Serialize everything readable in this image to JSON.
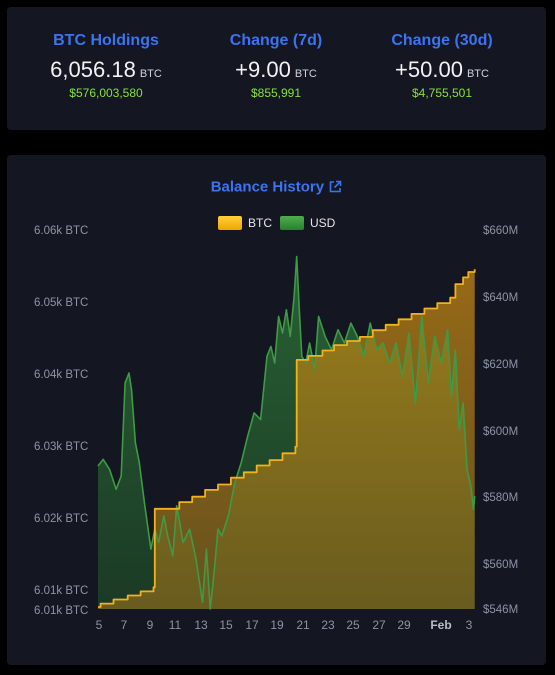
{
  "stats": [
    {
      "title": "BTC Holdings",
      "value": "6,056.18",
      "unit": "BTC",
      "usd": "$576,003,580"
    },
    {
      "title": "Change (7d)",
      "value": "+9.00",
      "unit": "BTC",
      "usd": "$855,991"
    },
    {
      "title": "Change (30d)",
      "value": "+50.00",
      "unit": "BTC",
      "usd": "$4,755,501"
    }
  ],
  "chart_data": {
    "type": "area",
    "title": "Balance History",
    "legend": [
      "BTC",
      "USD"
    ],
    "legend_position": "top-center",
    "x_tick_labels": [
      "5",
      "7",
      "9",
      "11",
      "13",
      "15",
      "17",
      "19",
      "21",
      "23",
      "25",
      "27",
      "29",
      "Feb",
      "3"
    ],
    "y_left_ticks": [
      "6.06k BTC",
      "6.05k BTC",
      "6.04k BTC",
      "6.03k BTC",
      "6.02k BTC",
      "6.01k BTC",
      "6.01k BTC"
    ],
    "y_right_ticks": [
      "$660M",
      "$640M",
      "$620M",
      "$600M",
      "$580M",
      "$560M",
      "$546M"
    ],
    "y_left_range": [
      6006,
      6062
    ],
    "y_right_range": [
      546,
      660
    ],
    "x_range": [
      4.9,
      34.2
    ],
    "btc_series": {
      "name": "BTC",
      "x": [
        4.9,
        5.1,
        6.1,
        7.2,
        8.2,
        9.2,
        9.3,
        11.2,
        12.2,
        13.2,
        14.2,
        15.2,
        16.2,
        17.2,
        18.2,
        19.2,
        20.2,
        20.3,
        21.2,
        22.3,
        23.2,
        24.2,
        25.2,
        26.2,
        27.2,
        28.2,
        29.2,
        30.2,
        31.2,
        32.2,
        32.6,
        33.2,
        33.6,
        34.1
      ],
      "values": [
        6006.3,
        6006.8,
        6007.4,
        6008.0,
        6008.6,
        6009.2,
        6020.8,
        6021.8,
        6022.6,
        6023.6,
        6024.4,
        6025.4,
        6026.2,
        6027.2,
        6028.0,
        6029.0,
        6030.0,
        6042.8,
        6043.4,
        6044.2,
        6045.0,
        6045.6,
        6046.2,
        6047.2,
        6048.0,
        6048.8,
        6049.6,
        6050.4,
        6051.2,
        6052.0,
        6054.0,
        6055.0,
        6055.8,
        6056.2
      ]
    },
    "usd_series": {
      "name": "USD",
      "x": [
        4.9,
        5.3,
        5.8,
        6.3,
        6.7,
        7.0,
        7.3,
        7.5,
        7.8,
        8.1,
        8.5,
        9.0,
        9.3,
        9.6,
        10.0,
        10.3,
        10.7,
        11.0,
        11.5,
        12.0,
        12.5,
        13.0,
        13.3,
        13.6,
        13.9,
        14.2,
        14.5,
        15.0,
        15.5,
        16.0,
        16.5,
        17.0,
        17.5,
        18.0,
        18.3,
        18.6,
        18.9,
        19.2,
        19.5,
        19.8,
        20.1,
        20.3,
        20.5,
        20.7,
        21.0,
        21.3,
        21.7,
        22.0,
        22.5,
        23.0,
        23.5,
        24.0,
        24.5,
        25.0,
        25.5,
        26.0,
        26.5,
        27.0,
        27.5,
        28.0,
        28.5,
        29.0,
        29.5,
        30.0,
        30.5,
        31.0,
        31.5,
        32.0,
        32.3,
        32.6,
        32.9,
        33.2,
        33.5,
        33.8,
        34.0,
        34.1
      ],
      "values": [
        589,
        591,
        588,
        582,
        586,
        614,
        617,
        612,
        596,
        590,
        578,
        564,
        570,
        566,
        574,
        568,
        562,
        577,
        566,
        570,
        561,
        548,
        564,
        546,
        557,
        570,
        568,
        574,
        584,
        590,
        598,
        605,
        603,
        622,
        625,
        620,
        634,
        629,
        636,
        628,
        640,
        652,
        636,
        622,
        620,
        626,
        618,
        634,
        628,
        624,
        630,
        626,
        632,
        628,
        622,
        632,
        624,
        626,
        620,
        626,
        616,
        629,
        608,
        634,
        614,
        628,
        620,
        630,
        610,
        624,
        600,
        608,
        588,
        583,
        576,
        580
      ]
    }
  }
}
